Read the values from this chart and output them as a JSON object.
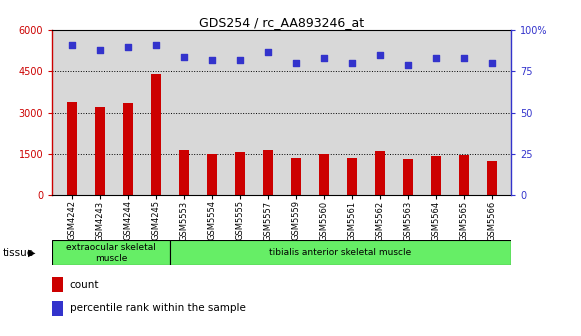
{
  "title": "GDS254 / rc_AA893246_at",
  "categories": [
    "GSM4242",
    "GSM4243",
    "GSM4244",
    "GSM4245",
    "GSM5553",
    "GSM5554",
    "GSM5555",
    "GSM5557",
    "GSM5559",
    "GSM5560",
    "GSM5561",
    "GSM5562",
    "GSM5563",
    "GSM5564",
    "GSM5565",
    "GSM5566"
  ],
  "counts": [
    3400,
    3200,
    3350,
    4400,
    1650,
    1500,
    1550,
    1650,
    1350,
    1500,
    1350,
    1600,
    1300,
    1400,
    1450,
    1250
  ],
  "percentiles": [
    91,
    88,
    90,
    91,
    84,
    82,
    82,
    87,
    80,
    83,
    80,
    85,
    79,
    83,
    83,
    80
  ],
  "bar_color": "#cc0000",
  "dot_color": "#3333cc",
  "ylim_left": [
    0,
    6000
  ],
  "ylim_right": [
    0,
    100
  ],
  "yticks_left": [
    0,
    1500,
    3000,
    4500,
    6000
  ],
  "ytick_labels_left": [
    "0",
    "1500",
    "3000",
    "4500",
    "6000"
  ],
  "yticks_right": [
    0,
    25,
    50,
    75,
    100
  ],
  "ytick_labels_right": [
    "0",
    "25",
    "50",
    "75",
    "100%"
  ],
  "grid_values": [
    1500,
    3000,
    4500
  ],
  "tissue_groups": [
    {
      "label": "extraocular skeletal\nmuscle",
      "start": 0,
      "end": 3,
      "color": "#66ee66"
    },
    {
      "label": "tibialis anterior skeletal muscle",
      "start": 4,
      "end": 15,
      "color": "#66ee66"
    }
  ],
  "tissue_label": "tissue",
  "legend_count_label": "count",
  "legend_percentile_label": "percentile rank within the sample",
  "background_color": "#ffffff",
  "plot_bg_color": "#d8d8d8",
  "xtick_bg_color": "#d8d8d8"
}
